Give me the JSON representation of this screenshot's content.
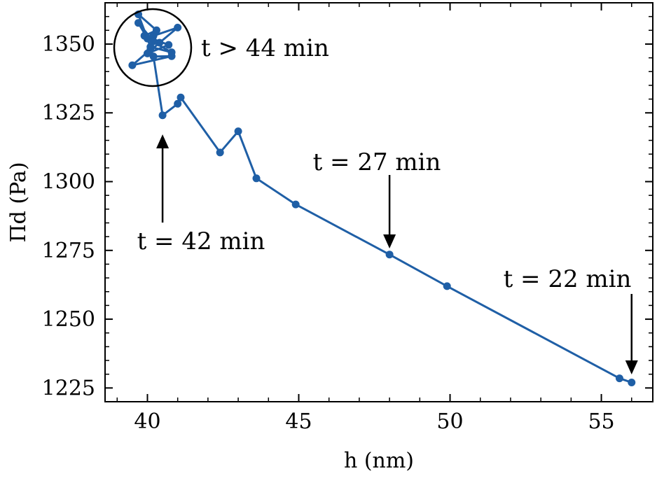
{
  "chart_data": {
    "type": "line",
    "xlabel": "h (nm)",
    "ylabel": "Πd (Pa)",
    "xlim": [
      38.6,
      56.7
    ],
    "ylim": [
      1220,
      1365
    ],
    "xticks": [
      40,
      45,
      50,
      55
    ],
    "yticks": [
      1225,
      1250,
      1275,
      1300,
      1325,
      1350
    ],
    "grid": false,
    "color": "#1f5fa6",
    "series": [
      {
        "points": [
          [
            56.0,
            1227
          ],
          [
            55.6,
            1228.5
          ],
          [
            49.9,
            1262
          ],
          [
            48.0,
            1273.5
          ],
          [
            44.9,
            1291.7
          ],
          [
            43.6,
            1301.2
          ],
          [
            43.0,
            1318.3
          ],
          [
            42.4,
            1310.6
          ],
          [
            41.1,
            1330.6
          ],
          [
            41.0,
            1328.3
          ],
          [
            40.5,
            1324.1
          ],
          [
            40.2,
            1345.5
          ],
          [
            40.8,
            1345.6
          ],
          [
            39.5,
            1342.3
          ],
          [
            40.1,
            1348
          ],
          [
            40.2,
            1353
          ],
          [
            41.0,
            1356
          ],
          [
            40.4,
            1350.5
          ],
          [
            40.0,
            1346.6
          ],
          [
            40.7,
            1349.7
          ],
          [
            39.9,
            1353
          ],
          [
            40.3,
            1355
          ],
          [
            39.7,
            1360.8
          ],
          [
            40.1,
            1349
          ],
          [
            40.8,
            1347
          ],
          [
            40.0,
            1352
          ],
          [
            39.7,
            1357.7
          ],
          [
            40.2,
            1351
          ]
        ]
      }
    ],
    "annotations": [
      {
        "text": "t > 44 min"
      },
      {
        "text": "t = 42 min"
      },
      {
        "text": "t = 27 min"
      },
      {
        "text": "t = 22 min"
      }
    ]
  }
}
